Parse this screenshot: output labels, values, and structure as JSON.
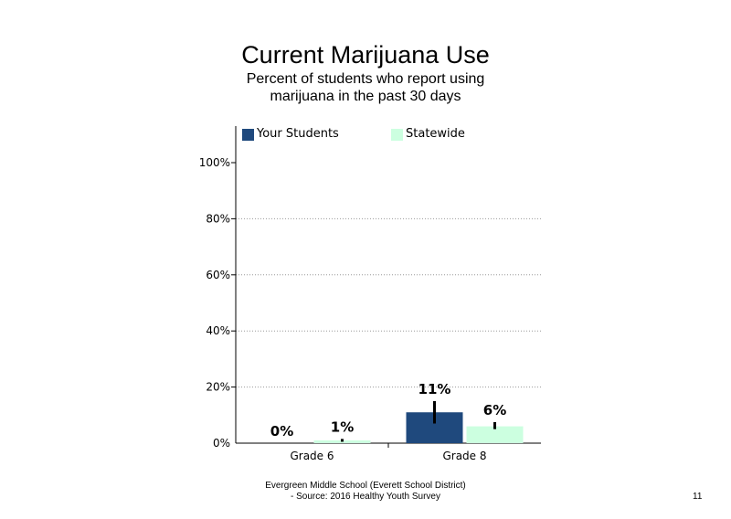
{
  "title": "Current Marijuana Use",
  "subtitle": "Percent of students who report using marijuana in the past 30 days",
  "footer": {
    "line1": "Evergreen Middle School (Everett School District)",
    "line2": "- Source: 2016 Healthy  Youth Survey"
  },
  "page_number": "11",
  "colors": {
    "your_students": "#1F497D",
    "statewide": "#CCFFE0"
  },
  "chart_data": {
    "type": "bar",
    "title": "Current Marijuana Use",
    "categories": [
      "Grade 6",
      "Grade 8"
    ],
    "series": [
      {
        "name": "Your Students",
        "values": [
          0,
          11
        ],
        "labels": [
          "0%",
          "11%"
        ],
        "error": [
          null,
          [
            7,
            15
          ]
        ]
      },
      {
        "name": "Statewide",
        "values": [
          1,
          6
        ],
        "labels": [
          "1%",
          "6%"
        ],
        "error": [
          [
            0.5,
            1.5
          ],
          [
            5,
            7.5
          ]
        ]
      }
    ],
    "ylim": [
      0,
      100
    ],
    "yticks": [
      "0%",
      "20%",
      "40%",
      "60%",
      "80%",
      "100%"
    ],
    "grid": "dotted horizontal",
    "legend": "top"
  }
}
